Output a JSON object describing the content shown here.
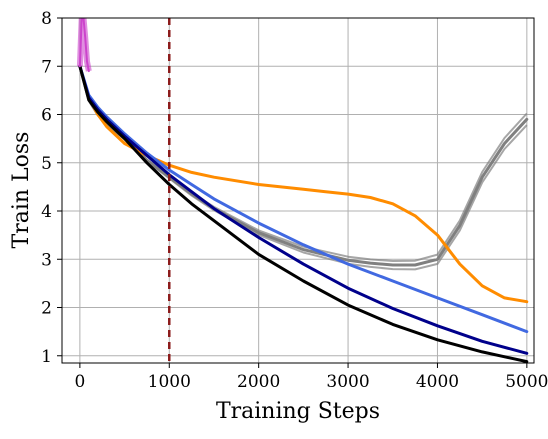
{
  "chart_data": {
    "type": "line",
    "title": "",
    "xlabel": "Training Steps",
    "ylabel": "Train Loss",
    "xlim": [
      -200,
      5080
    ],
    "ylim": [
      0.85,
      8
    ],
    "grid": true,
    "legend": "none",
    "xticks": [
      0,
      1000,
      2000,
      3000,
      4000,
      5000
    ],
    "yticks": [
      1,
      2,
      3,
      4,
      5,
      6,
      7,
      8
    ],
    "reference_line": {
      "x": 1000,
      "color": "#8b1a1a",
      "style": "dashed"
    },
    "series": [
      {
        "color": "#000000",
        "x": [
          0,
          100,
          200,
          300,
          500,
          750,
          1000,
          1250,
          1500,
          2000,
          2500,
          3000,
          3500,
          4000,
          4500,
          5000
        ],
        "y": [
          7.0,
          6.3,
          6.05,
          5.85,
          5.5,
          5.0,
          4.55,
          4.15,
          3.8,
          3.1,
          2.55,
          2.05,
          1.65,
          1.33,
          1.08,
          0.88
        ]
      },
      {
        "color": "#00008b",
        "x": [
          0,
          100,
          200,
          300,
          500,
          750,
          1000,
          1250,
          1500,
          2000,
          2500,
          3000,
          3500,
          4000,
          4500,
          5000
        ],
        "y": [
          7.0,
          6.35,
          6.1,
          5.9,
          5.55,
          5.15,
          4.75,
          4.4,
          4.05,
          3.45,
          2.9,
          2.4,
          1.98,
          1.62,
          1.3,
          1.05
        ]
      },
      {
        "color": "#4169e1",
        "x": [
          0,
          100,
          200,
          300,
          500,
          750,
          1000,
          1250,
          1500,
          2000,
          2500,
          3000,
          3500,
          4000,
          4500,
          5000
        ],
        "y": [
          7.0,
          6.4,
          6.15,
          5.95,
          5.6,
          5.2,
          4.85,
          4.55,
          4.25,
          3.75,
          3.3,
          2.9,
          2.55,
          2.2,
          1.85,
          1.5
        ]
      },
      {
        "color": "#ff8c00",
        "x": [
          0,
          100,
          200,
          300,
          500,
          750,
          1000,
          1250,
          1500,
          2000,
          2500,
          2750,
          3000,
          3250,
          3500,
          3750,
          4000,
          4250,
          4500,
          4750,
          5000
        ],
        "y": [
          7.0,
          6.35,
          6.0,
          5.75,
          5.4,
          5.15,
          4.95,
          4.8,
          4.7,
          4.55,
          4.45,
          4.4,
          4.35,
          4.28,
          4.15,
          3.9,
          3.5,
          2.9,
          2.45,
          2.2,
          2.12
        ]
      },
      {
        "color": "#808080",
        "x": [
          0,
          100,
          200,
          300,
          500,
          750,
          1000,
          1250,
          1500,
          2000,
          2500,
          3000,
          3250,
          3500,
          3750,
          4000,
          4250,
          4500,
          4750,
          5000
        ],
        "y": [
          7.0,
          6.3,
          6.0,
          5.8,
          5.5,
          5.05,
          4.7,
          4.35,
          4.05,
          3.55,
          3.2,
          2.98,
          2.92,
          2.88,
          2.88,
          3.0,
          3.7,
          4.7,
          5.4,
          5.9
        ]
      },
      {
        "color": "#cc44cc",
        "x": [
          0,
          20,
          40,
          60,
          80,
          100
        ],
        "y": [
          7.0,
          8.0,
          8.0,
          7.6,
          7.1,
          6.9
        ]
      }
    ]
  }
}
